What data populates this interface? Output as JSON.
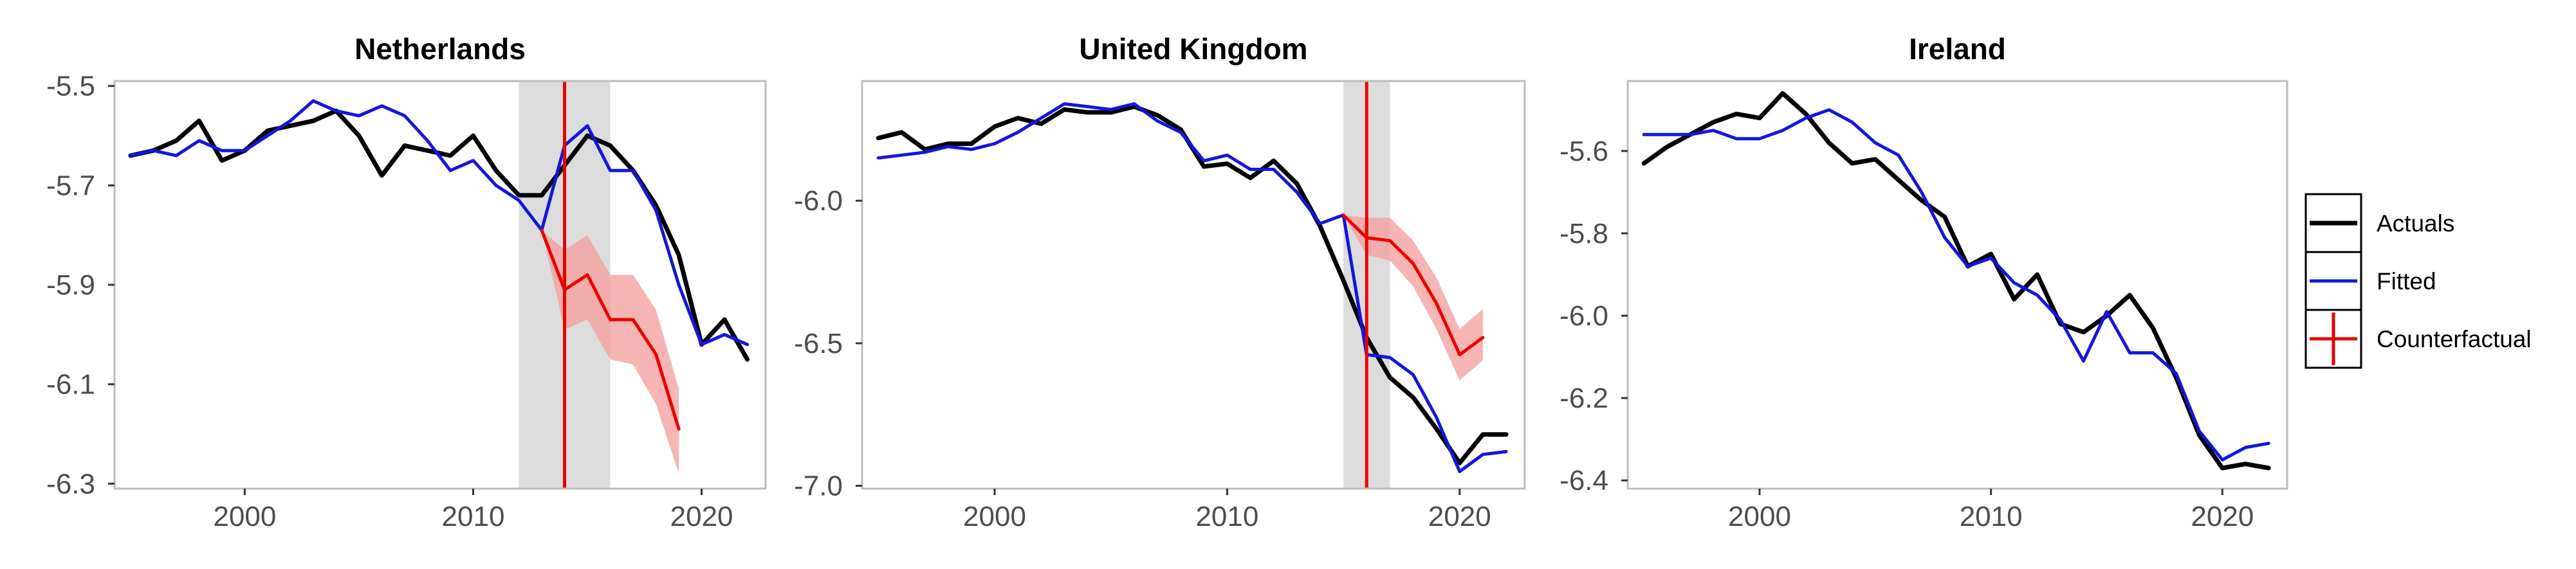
{
  "colors": {
    "actuals": "#000000",
    "fitted": "#1515e0",
    "counterfactual": "#ee0000",
    "band": "#f4a3a0",
    "shade": "#dcdcdc",
    "frame": "#bdbdbd"
  },
  "legend": {
    "items": [
      {
        "label": "Actuals",
        "icon": "black-line-icon"
      },
      {
        "label": "Fitted",
        "icon": "blue-line-icon"
      },
      {
        "label": "Counterfactual",
        "icon": "red-cross-line-icon"
      }
    ]
  },
  "chart_data": [
    {
      "type": "line",
      "title": "Netherlands",
      "xlabel": "",
      "ylabel": "",
      "xlim": [
        1994.3,
        2022.8
      ],
      "ylim": [
        -6.31,
        -5.49
      ],
      "x_ticks": [
        2000,
        2010,
        2020
      ],
      "x_tick_labels": [
        "2000",
        "2010",
        "2020"
      ],
      "y_ticks": [
        -5.5,
        -5.7,
        -5.9,
        -6.1,
        -6.3
      ],
      "y_tick_labels": [
        "-5.5",
        "-5.7",
        "-5.9",
        "-6.1",
        "-6.3"
      ],
      "grid": false,
      "treatment_year": 2014,
      "shaded_period": [
        2012,
        2016
      ],
      "series": [
        {
          "name": "Actuals",
          "x": [
            1995,
            1996,
            1997,
            1998,
            1999,
            2000,
            2001,
            2002,
            2003,
            2004,
            2005,
            2006,
            2007,
            2008,
            2009,
            2010,
            2011,
            2012,
            2013,
            2014,
            2015,
            2016,
            2017,
            2018,
            2019,
            2020,
            2021,
            2022
          ],
          "values": [
            -5.64,
            -5.63,
            -5.61,
            -5.57,
            -5.65,
            -5.63,
            -5.59,
            -5.58,
            -5.57,
            -5.55,
            -5.6,
            -5.68,
            -5.62,
            -5.63,
            -5.64,
            -5.6,
            -5.67,
            -5.72,
            -5.72,
            -5.66,
            -5.6,
            -5.62,
            -5.67,
            -5.74,
            -5.84,
            -6.02,
            -5.97,
            -6.05
          ]
        },
        {
          "name": "Fitted",
          "x": [
            1995,
            1996,
            1997,
            1998,
            1999,
            2000,
            2001,
            2002,
            2003,
            2004,
            2005,
            2006,
            2007,
            2008,
            2009,
            2010,
            2011,
            2012,
            2013,
            2014,
            2015,
            2016,
            2017,
            2018,
            2019,
            2020,
            2021,
            2022
          ],
          "values": [
            -5.64,
            -5.63,
            -5.64,
            -5.61,
            -5.63,
            -5.63,
            -5.6,
            -5.57,
            -5.53,
            -5.55,
            -5.56,
            -5.54,
            -5.56,
            -5.61,
            -5.67,
            -5.65,
            -5.7,
            -5.73,
            -5.79,
            -5.62,
            -5.58,
            -5.67,
            -5.67,
            -5.75,
            -5.9,
            -6.02,
            -6.0,
            -6.02
          ]
        },
        {
          "name": "Counterfactual",
          "x": [
            2013,
            2014,
            2015,
            2016,
            2017,
            2018,
            2019
          ],
          "values": [
            -5.79,
            -5.91,
            -5.88,
            -5.97,
            -5.97,
            -6.04,
            -6.19
          ],
          "lower": [
            -5.79,
            -5.99,
            -5.97,
            -6.05,
            -6.06,
            -6.14,
            -6.28
          ],
          "upper": [
            -5.79,
            -5.83,
            -5.8,
            -5.88,
            -5.88,
            -5.95,
            -6.11
          ]
        }
      ]
    },
    {
      "type": "line",
      "title": "United Kingdom",
      "xlabel": "",
      "ylabel": "",
      "xlim": [
        1994.3,
        2022.8
      ],
      "ylim": [
        -7.01,
        -5.58
      ],
      "x_ticks": [
        2000,
        2010,
        2020
      ],
      "x_tick_labels": [
        "2000",
        "2010",
        "2020"
      ],
      "y_ticks": [
        -6.0,
        -6.5,
        -7.0
      ],
      "y_tick_labels": [
        "-6.0",
        "-6.5",
        "-7.0"
      ],
      "grid": false,
      "treatment_year": 2016,
      "shaded_period": [
        2015,
        2017
      ],
      "series": [
        {
          "name": "Actuals",
          "x": [
            1995,
            1996,
            1997,
            1998,
            1999,
            2000,
            2001,
            2002,
            2003,
            2004,
            2005,
            2006,
            2007,
            2008,
            2009,
            2010,
            2011,
            2012,
            2013,
            2014,
            2015,
            2016,
            2017,
            2018,
            2019,
            2020,
            2021,
            2022
          ],
          "values": [
            -5.78,
            -5.76,
            -5.82,
            -5.8,
            -5.8,
            -5.74,
            -5.71,
            -5.73,
            -5.68,
            -5.69,
            -5.69,
            -5.67,
            -5.7,
            -5.75,
            -5.88,
            -5.87,
            -5.92,
            -5.86,
            -5.94,
            -6.09,
            -6.28,
            -6.48,
            -6.62,
            -6.69,
            -6.8,
            -6.92,
            -6.82,
            -6.82
          ]
        },
        {
          "name": "Fitted",
          "x": [
            1995,
            1996,
            1997,
            1998,
            1999,
            2000,
            2001,
            2002,
            2003,
            2004,
            2005,
            2006,
            2007,
            2008,
            2009,
            2010,
            2011,
            2012,
            2013,
            2014,
            2015,
            2016,
            2017,
            2018,
            2019,
            2020,
            2021,
            2022
          ],
          "values": [
            -5.85,
            -5.84,
            -5.83,
            -5.81,
            -5.82,
            -5.8,
            -5.76,
            -5.71,
            -5.66,
            -5.67,
            -5.68,
            -5.66,
            -5.72,
            -5.76,
            -5.86,
            -5.84,
            -5.89,
            -5.89,
            -5.97,
            -6.08,
            -6.05,
            -6.54,
            -6.55,
            -6.61,
            -6.76,
            -6.95,
            -6.89,
            -6.88
          ]
        },
        {
          "name": "Counterfactual",
          "x": [
            2015,
            2016,
            2017,
            2018,
            2019,
            2020,
            2021
          ],
          "values": [
            -6.05,
            -6.13,
            -6.14,
            -6.22,
            -6.36,
            -6.54,
            -6.48
          ],
          "lower": [
            -6.05,
            -6.19,
            -6.21,
            -6.3,
            -6.45,
            -6.63,
            -6.56
          ],
          "upper": [
            -6.05,
            -6.06,
            -6.06,
            -6.14,
            -6.27,
            -6.45,
            -6.38
          ]
        }
      ]
    },
    {
      "type": "line",
      "title": "Ireland",
      "xlabel": "",
      "ylabel": "",
      "xlim": [
        1994.3,
        2022.8
      ],
      "ylim": [
        -6.42,
        -5.43
      ],
      "x_ticks": [
        2000,
        2010,
        2020
      ],
      "x_tick_labels": [
        "2000",
        "2010",
        "2020"
      ],
      "y_ticks": [
        -5.6,
        -5.8,
        -6.0,
        -6.2,
        -6.4
      ],
      "y_tick_labels": [
        "-5.6",
        "-5.8",
        "-6.0",
        "-6.2",
        "-6.4"
      ],
      "grid": false,
      "series": [
        {
          "name": "Actuals",
          "x": [
            1995,
            1996,
            1997,
            1998,
            1999,
            2000,
            2001,
            2002,
            2003,
            2004,
            2005,
            2006,
            2007,
            2008,
            2009,
            2010,
            2011,
            2012,
            2013,
            2014,
            2015,
            2016,
            2017,
            2018,
            2019,
            2020,
            2021,
            2022
          ],
          "values": [
            -5.63,
            -5.59,
            -5.56,
            -5.53,
            -5.51,
            -5.52,
            -5.46,
            -5.51,
            -5.58,
            -5.63,
            -5.62,
            -5.67,
            -5.72,
            -5.76,
            -5.88,
            -5.85,
            -5.96,
            -5.9,
            -6.02,
            -6.04,
            -6.0,
            -5.95,
            -6.03,
            -6.15,
            -6.29,
            -6.37,
            -6.36,
            -6.37
          ]
        },
        {
          "name": "Fitted",
          "x": [
            1995,
            1996,
            1997,
            1998,
            1999,
            2000,
            2001,
            2002,
            2003,
            2004,
            2005,
            2006,
            2007,
            2008,
            2009,
            2010,
            2011,
            2012,
            2013,
            2014,
            2015,
            2016,
            2017,
            2018,
            2019,
            2020,
            2021,
            2022
          ],
          "values": [
            -5.56,
            -5.56,
            -5.56,
            -5.55,
            -5.57,
            -5.57,
            -5.55,
            -5.52,
            -5.5,
            -5.53,
            -5.58,
            -5.61,
            -5.7,
            -5.81,
            -5.88,
            -5.86,
            -5.92,
            -5.95,
            -6.01,
            -6.11,
            -5.99,
            -6.09,
            -6.09,
            -6.14,
            -6.28,
            -6.35,
            -6.32,
            -6.31
          ]
        }
      ]
    }
  ]
}
